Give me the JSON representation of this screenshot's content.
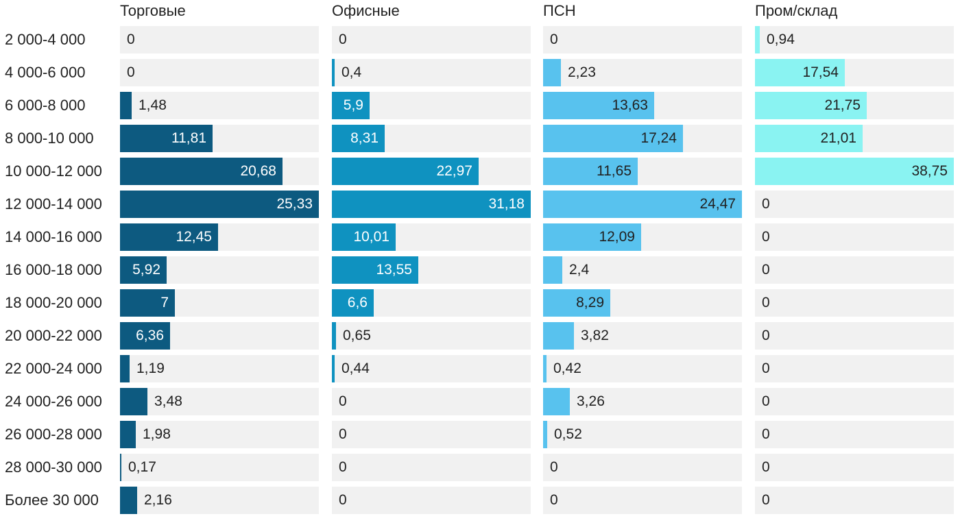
{
  "chart_data": {
    "type": "bar",
    "orientation": "horizontal",
    "title": "",
    "xlabel": "",
    "ylabel": "",
    "grid": false,
    "legend_position": "column-headers-top",
    "scaling": "each column scaled independently so its max value fills the full track width",
    "track_color": "#f1f1f1",
    "text_color": "#212121",
    "background_color": "#ffffff",
    "categories": [
      "2 000-4 000",
      "4 000-6 000",
      "6 000-8 000",
      "8 000-10 000",
      "10 000-12 000",
      "12 000-14 000",
      "14 000-16 000",
      "16 000-18 000",
      "18 000-20 000",
      "20 000-22 000",
      "22 000-24 000",
      "24 000-26 000",
      "26 000-28 000",
      "28 000-30 000",
      "Более 30 000"
    ],
    "series": [
      {
        "name": "Торговые",
        "color": "#0d5a80",
        "inside_label_color": "#ffffff",
        "values": [
          0,
          0,
          1.48,
          11.81,
          20.68,
          25.33,
          12.45,
          5.92,
          7,
          6.36,
          1.19,
          3.48,
          1.98,
          0.17,
          2.16
        ],
        "labels": [
          "0",
          "0",
          "1,48",
          "11,81",
          "20,68",
          "25,33",
          "12,45",
          "5,92",
          "7",
          "6,36",
          "1,19",
          "3,48",
          "1,98",
          "0,17",
          "2,16"
        ]
      },
      {
        "name": "Офисные",
        "color": "#0f92c0",
        "inside_label_color": "#ffffff",
        "values": [
          0,
          0.4,
          5.9,
          8.31,
          22.97,
          31.18,
          10.01,
          13.55,
          6.6,
          0.65,
          0.44,
          0,
          0,
          0,
          0
        ],
        "labels": [
          "0",
          "0,4",
          "5,9",
          "8,31",
          "22,97",
          "31,18",
          "10,01",
          "13,55",
          "6,6",
          "0,65",
          "0,44",
          "0",
          "0",
          "0",
          "0"
        ]
      },
      {
        "name": "ПСН",
        "color": "#58c2ee",
        "inside_label_color": "#212121",
        "values": [
          0,
          2.23,
          13.63,
          17.24,
          11.65,
          24.47,
          12.09,
          2.4,
          8.29,
          3.82,
          0.42,
          3.26,
          0.52,
          0,
          0
        ],
        "labels": [
          "0",
          "2,23",
          "13,63",
          "17,24",
          "11,65",
          "24,47",
          "12,09",
          "2,4",
          "8,29",
          "3,82",
          "0,42",
          "3,26",
          "0,52",
          "0",
          "0"
        ]
      },
      {
        "name": "Пром/склад",
        "color": "#8af3f2",
        "inside_label_color": "#212121",
        "values": [
          0.94,
          17.54,
          21.75,
          21.01,
          38.75,
          0,
          0,
          0,
          0,
          0,
          0,
          0,
          0,
          0,
          0
        ],
        "labels": [
          "0,94",
          "17,54",
          "21,75",
          "21,01",
          "38,75",
          "0",
          "0",
          "0",
          "0",
          "0",
          "0",
          "0",
          "0",
          "0",
          "0"
        ]
      }
    ]
  }
}
